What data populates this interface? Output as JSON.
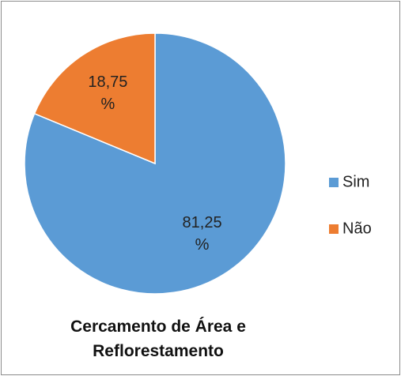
{
  "chart_data": {
    "type": "pie",
    "title": "Cercamento de Área e Reflorestamento",
    "categories": [
      "Sim",
      "Não"
    ],
    "values": [
      81.25,
      18.75
    ],
    "value_labels": [
      "81,25 %",
      "18,75 %"
    ],
    "colors": [
      "#5b9bd5",
      "#ed7d31"
    ],
    "legend": "right"
  }
}
